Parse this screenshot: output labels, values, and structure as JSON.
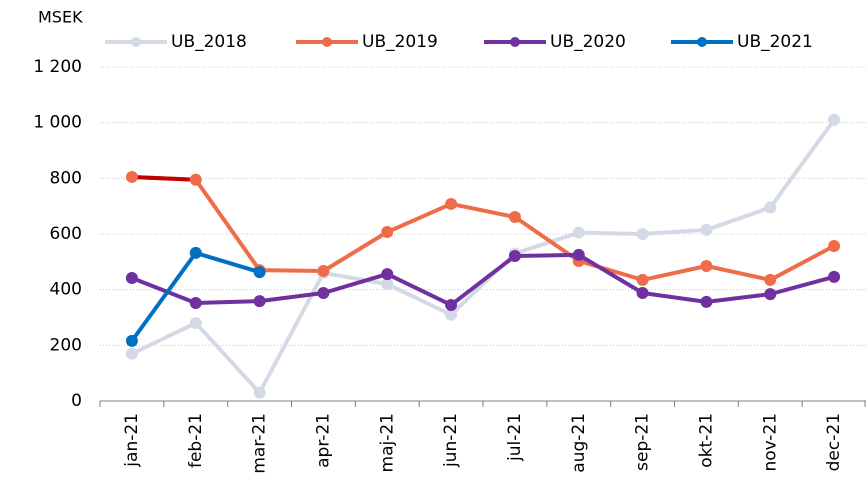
{
  "chart_data": {
    "type": "line",
    "y_label": "MSEK",
    "categories": [
      "jan-21",
      "feb-21",
      "mar-21",
      "apr-21",
      "maj-21",
      "jun-21",
      "jul-21",
      "aug-21",
      "sep-21",
      "okt-21",
      "nov-21",
      "dec-21"
    ],
    "series": [
      {
        "name": "UB_2018",
        "color": "#d3dae5",
        "values": [
          170,
          280,
          30,
          460,
          420,
          310,
          530,
          605,
          600,
          615,
          695,
          1010
        ]
      },
      {
        "name": "UB_2019",
        "color": "#ef6c4a",
        "values": [
          805,
          795,
          470,
          467,
          607,
          708,
          661,
          503,
          435,
          485,
          435,
          557
        ],
        "highlight": {
          "color": "#c00000",
          "points": [
            0,
            1
          ]
        }
      },
      {
        "name": "UB_2020",
        "color": "#7030a0",
        "values": [
          442,
          352,
          359,
          388,
          456,
          345,
          521,
          525,
          388,
          356,
          384,
          446
        ]
      },
      {
        "name": "UB_2021",
        "color": "#0070c0",
        "values": [
          216,
          532,
          463,
          null,
          null,
          null,
          null,
          null,
          null,
          null,
          null,
          null
        ]
      }
    ],
    "ylim": [
      0,
      1200
    ],
    "yticks": [
      0,
      200,
      400,
      600,
      800,
      {
        "value": 1000,
        "label": "1 000"
      },
      {
        "value": 1200,
        "label": "1 200"
      }
    ],
    "grid": true
  }
}
